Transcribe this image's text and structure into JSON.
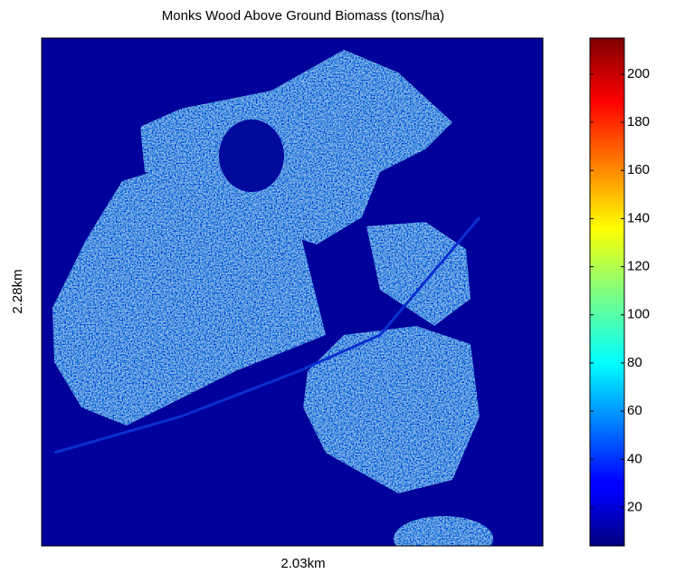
{
  "chart_data": {
    "type": "heatmap",
    "title": "Monks Wood Above Ground Biomass (tons/ha)",
    "xlabel": "2.03km",
    "ylabel": "2.28km",
    "colormap": "jet",
    "clim": [
      4,
      215
    ],
    "cticks": [
      20,
      40,
      60,
      80,
      100,
      120,
      140,
      160,
      180,
      200
    ]
  }
}
